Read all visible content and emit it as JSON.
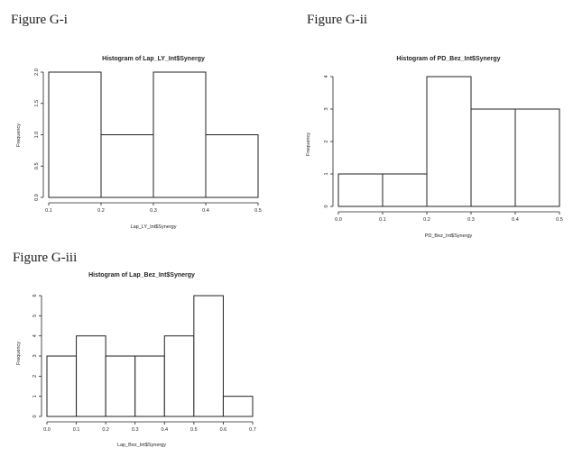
{
  "figures": [
    {
      "label": "Figure G-i"
    },
    {
      "label": "Figure G-ii"
    },
    {
      "label": "Figure G-iii"
    }
  ],
  "chart_data": [
    {
      "type": "bar",
      "title": "Histogram of Lap_LY_Int$Synergy",
      "xlabel": "Lap_LY_Int$Synergy",
      "ylabel": "Frequency",
      "bin_edges": [
        0.1,
        0.2,
        0.3,
        0.4,
        0.5
      ],
      "values": [
        2.0,
        1.0,
        2.0,
        1.0
      ],
      "xticks": [
        "0.1",
        "0.2",
        "0.3",
        "0.4",
        "0.5"
      ],
      "yticks": [
        "0.0",
        "0.5",
        "1.0",
        "1.5",
        "2.0"
      ],
      "xlim": [
        0.1,
        0.5
      ],
      "ylim": [
        0,
        2.0
      ],
      "grid": false
    },
    {
      "type": "bar",
      "title": "Histogram of PD_Bez_Int$Synergy",
      "xlabel": "PD_Bez_Int$Synergy",
      "ylabel": "Frequency",
      "bin_edges": [
        0.0,
        0.1,
        0.2,
        0.3,
        0.4,
        0.5
      ],
      "values": [
        1,
        1,
        4,
        3,
        3
      ],
      "xticks": [
        "0.0",
        "0.1",
        "0.2",
        "0.3",
        "0.4",
        "0.5"
      ],
      "yticks": [
        "0",
        "1",
        "2",
        "3",
        "4"
      ],
      "xlim": [
        0.0,
        0.5
      ],
      "ylim": [
        0,
        4
      ],
      "grid": false
    },
    {
      "type": "bar",
      "title": "Histogram of Lap_Bez_Int$Synergy",
      "xlabel": "Lap_Bez_Int$Synergy",
      "ylabel": "Frequency",
      "bin_edges": [
        0.0,
        0.1,
        0.2,
        0.3,
        0.4,
        0.5,
        0.6,
        0.7
      ],
      "values": [
        3,
        4,
        3,
        3,
        4,
        6,
        1
      ],
      "xticks": [
        "0.0",
        "0.1",
        "0.2",
        "0.3",
        "0.4",
        "0.5",
        "0.6",
        "0.7"
      ],
      "yticks": [
        "0",
        "1",
        "2",
        "3",
        "4",
        "5",
        "6"
      ],
      "xlim": [
        0.0,
        0.7
      ],
      "ylim": [
        0,
        6
      ],
      "grid": false
    }
  ]
}
